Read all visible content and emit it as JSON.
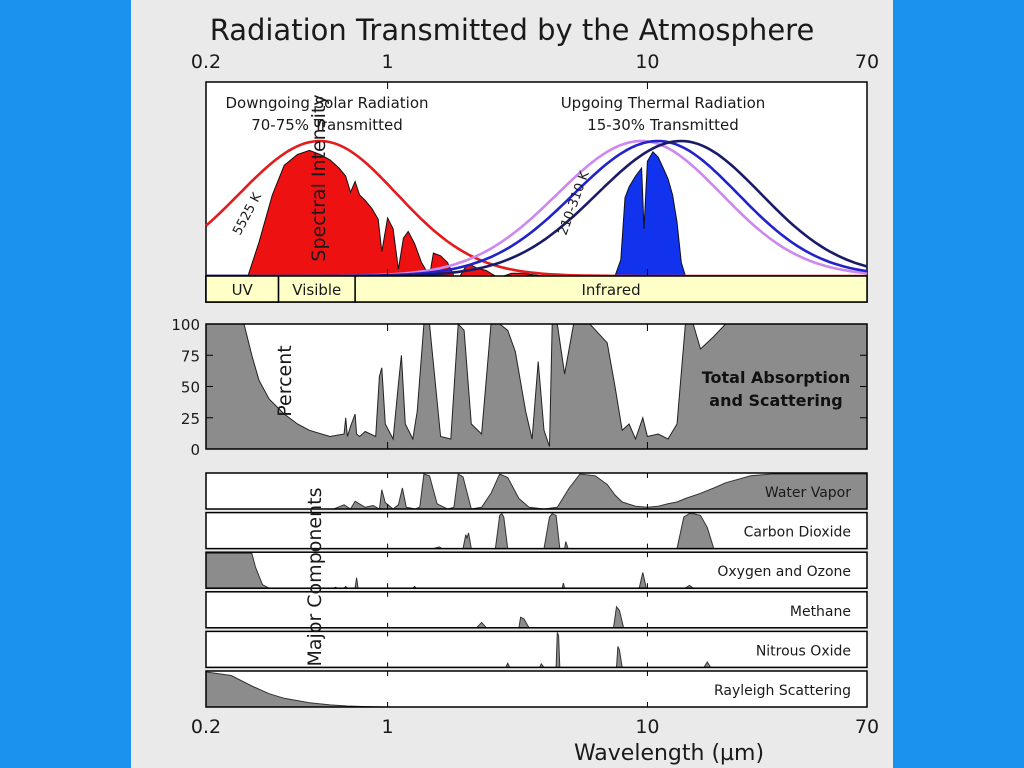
{
  "slide": {
    "background": "#eaeaea",
    "frame_color": "#1b93ee"
  },
  "chart_data": [
    {
      "id": "spectral",
      "type": "area",
      "title": "Radiation Transmitted by the Atmosphere",
      "ylabel": "Spectral Intensity",
      "xscale": "log",
      "xlim": [
        0.2,
        70
      ],
      "x_ticks": [
        0.2,
        1,
        10,
        70
      ],
      "x_tick_labels": [
        "0.2",
        "1",
        "10",
        "70"
      ],
      "annotations": {
        "solar_title": "Downgoing Solar Radiation",
        "solar_sub": "70-75% Transmitted",
        "thermal_title": "Upgoing Thermal Radiation",
        "thermal_sub": "15-30% Transmitted",
        "solar_temp": "5525 K",
        "thermal_temp": "210-310 K"
      },
      "bands": [
        {
          "label": "UV",
          "range": [
            0.2,
            0.38
          ]
        },
        {
          "label": "Visible",
          "range": [
            0.38,
            0.75
          ]
        },
        {
          "label": "Infrared",
          "range": [
            0.75,
            70
          ]
        }
      ],
      "series": [
        {
          "role": "curve",
          "color": "#e41a1c",
          "peak_x": 0.55,
          "width": 0.5
        },
        {
          "role": "curve",
          "color": "#cc88ee",
          "peak_x": 9.5,
          "width": 0.52
        },
        {
          "role": "curve",
          "color": "#2222cc",
          "peak_x": 11,
          "width": 0.52
        },
        {
          "role": "curve",
          "color": "#1a1a66",
          "peak_x": 13.5,
          "width": 0.52
        },
        {
          "role": "fill",
          "color": "#ee1111",
          "x": [
            0.29,
            0.32,
            0.36,
            0.4,
            0.45,
            0.5,
            0.55,
            0.6,
            0.65,
            0.69,
            0.72,
            0.75,
            0.78,
            0.82,
            0.87,
            0.92,
            0.95,
            1.0,
            1.05,
            1.1,
            1.15,
            1.2,
            1.27,
            1.35,
            1.45,
            1.5,
            1.6,
            1.7,
            1.8,
            1.9,
            2.0,
            2.1,
            2.2,
            2.4,
            2.6,
            2.8,
            3.0,
            3.3,
            3.6,
            4.0
          ],
          "y": [
            0.0,
            0.25,
            0.6,
            0.82,
            0.9,
            0.93,
            0.9,
            0.86,
            0.8,
            0.74,
            0.62,
            0.7,
            0.6,
            0.56,
            0.5,
            0.42,
            0.18,
            0.43,
            0.35,
            0.05,
            0.28,
            0.33,
            0.24,
            0.1,
            0.0,
            0.17,
            0.15,
            0.1,
            0.0,
            0.0,
            0.07,
            0.08,
            0.06,
            0.04,
            0.0,
            0.0,
            0.02,
            0.02,
            0.01,
            0.0
          ]
        },
        {
          "role": "fill",
          "color": "#1133ee",
          "x": [
            7.5,
            7.9,
            8.2,
            8.5,
            9.0,
            9.5,
            9.7,
            10.0,
            10.5,
            11.0,
            11.5,
            12.0,
            12.5,
            13.0,
            13.5,
            14.0
          ],
          "y": [
            0.0,
            0.12,
            0.58,
            0.66,
            0.74,
            0.8,
            0.35,
            0.85,
            0.92,
            0.88,
            0.8,
            0.72,
            0.6,
            0.4,
            0.1,
            0.0
          ]
        }
      ]
    },
    {
      "id": "total",
      "type": "area",
      "ylabel": "Percent",
      "label": "Total Absorption\nand Scattering",
      "xscale": "log",
      "xlim": [
        0.2,
        70
      ],
      "ylim": [
        0,
        100
      ],
      "y_ticks": [
        0,
        25,
        50,
        75,
        100
      ],
      "fill": "#8c8c8c",
      "x": [
        0.2,
        0.28,
        0.3,
        0.32,
        0.35,
        0.4,
        0.45,
        0.5,
        0.6,
        0.68,
        0.69,
        0.7,
        0.72,
        0.75,
        0.76,
        0.78,
        0.82,
        0.9,
        0.93,
        0.95,
        0.98,
        1.05,
        1.1,
        1.13,
        1.17,
        1.25,
        1.3,
        1.38,
        1.45,
        1.6,
        1.75,
        1.87,
        1.97,
        2.1,
        2.3,
        2.5,
        2.7,
        2.9,
        3.1,
        3.4,
        3.6,
        3.8,
        4.0,
        4.2,
        4.3,
        4.5,
        4.8,
        5.2,
        6.0,
        7.0,
        7.5,
        8.0,
        8.5,
        9.0,
        9.6,
        10.0,
        11.0,
        12.0,
        13.0,
        14.0,
        15.0,
        16.0,
        18.0,
        20.0,
        22.0,
        25.0,
        30.0,
        40.0,
        50.0,
        70.0
      ],
      "values": [
        100,
        100,
        75,
        55,
        40,
        28,
        20,
        15,
        10,
        12,
        25,
        10,
        18,
        28,
        12,
        10,
        14,
        10,
        58,
        65,
        20,
        8,
        52,
        75,
        20,
        8,
        30,
        100,
        100,
        10,
        8,
        100,
        95,
        20,
        12,
        100,
        100,
        95,
        78,
        30,
        8,
        70,
        15,
        2,
        100,
        100,
        60,
        100,
        100,
        85,
        50,
        15,
        20,
        8,
        25,
        10,
        12,
        8,
        20,
        100,
        100,
        80,
        90,
        100,
        100,
        100,
        100,
        100,
        100,
        100
      ]
    },
    {
      "id": "components",
      "type": "area",
      "ylabel": "Major Components",
      "xlabel": "Wavelength (µm)",
      "xscale": "log",
      "xlim": [
        0.2,
        70
      ],
      "x_ticks": [
        0.2,
        1,
        10,
        70
      ],
      "x_tick_labels": [
        "0.2",
        "1",
        "10",
        "70"
      ],
      "fill": "#8c8c8c",
      "series": [
        {
          "name": "Water Vapor",
          "x": [
            0.2,
            0.62,
            0.68,
            0.72,
            0.75,
            0.82,
            0.88,
            0.93,
            0.95,
            0.98,
            1.05,
            1.1,
            1.14,
            1.18,
            1.28,
            1.33,
            1.38,
            1.45,
            1.55,
            1.7,
            1.8,
            1.87,
            1.95,
            2.1,
            2.3,
            2.5,
            2.7,
            2.9,
            3.2,
            3.5,
            4.0,
            4.5,
            5.0,
            5.5,
            6.3,
            7.0,
            7.5,
            8.0,
            9.0,
            10.0,
            11.0,
            12.0,
            13.0,
            14.0,
            16.0,
            18.0,
            20.0,
            25.0,
            30.0,
            40.0,
            70.0
          ],
          "values": [
            0,
            0,
            12,
            0,
            22,
            5,
            10,
            0,
            55,
            18,
            0,
            12,
            60,
            5,
            0,
            6,
            100,
            95,
            15,
            0,
            5,
            100,
            92,
            0,
            5,
            45,
            100,
            90,
            30,
            5,
            0,
            5,
            60,
            100,
            95,
            70,
            40,
            20,
            8,
            5,
            8,
            15,
            20,
            30,
            45,
            60,
            75,
            95,
            100,
            100,
            100
          ]
        },
        {
          "name": "Carbon Dioxide",
          "x": [
            0.2,
            1.5,
            1.58,
            1.62,
            1.95,
            2.0,
            2.02,
            2.05,
            2.1,
            2.6,
            2.7,
            2.75,
            2.8,
            2.9,
            4.0,
            4.2,
            4.3,
            4.45,
            4.6,
            4.8,
            4.85,
            4.95,
            13.0,
            13.8,
            14.5,
            15.0,
            16.0,
            17.0,
            18.0,
            70.0
          ],
          "values": [
            0,
            0,
            5,
            0,
            0,
            40,
            30,
            45,
            0,
            0,
            95,
            100,
            90,
            0,
            0,
            90,
            100,
            95,
            0,
            0,
            20,
            0,
            0,
            90,
            100,
            100,
            95,
            60,
            0,
            0
          ]
        },
        {
          "name": "Oxygen and Ozone",
          "x": [
            0.2,
            0.3,
            0.31,
            0.33,
            0.35,
            0.62,
            0.63,
            0.64,
            0.68,
            0.69,
            0.7,
            0.75,
            0.76,
            0.77,
            1.25,
            1.27,
            1.29,
            4.7,
            4.75,
            4.8,
            9.3,
            9.6,
            9.9,
            14.0,
            14.5,
            15.0,
            70.0
          ],
          "values": [
            100,
            100,
            60,
            10,
            0,
            0,
            3,
            0,
            0,
            5,
            0,
            0,
            30,
            0,
            0,
            5,
            0,
            0,
            15,
            0,
            0,
            45,
            0,
            0,
            8,
            0,
            0
          ]
        },
        {
          "name": "Methane",
          "x": [
            0.2,
            2.2,
            2.3,
            2.4,
            3.2,
            3.25,
            3.35,
            3.5,
            7.4,
            7.6,
            7.8,
            8.1,
            70.0
          ],
          "values": [
            0,
            0,
            15,
            0,
            0,
            30,
            25,
            0,
            0,
            60,
            50,
            0,
            0
          ]
        },
        {
          "name": "Nitrous Oxide",
          "x": [
            0.2,
            2.85,
            2.9,
            2.95,
            3.85,
            3.9,
            4.0,
            4.45,
            4.5,
            4.55,
            4.6,
            7.6,
            7.7,
            7.8,
            8.0,
            16.5,
            17.0,
            17.5,
            70.0
          ],
          "values": [
            0,
            0,
            12,
            0,
            0,
            10,
            0,
            0,
            100,
            90,
            0,
            0,
            60,
            50,
            0,
            0,
            15,
            0,
            0
          ]
        },
        {
          "name": "Rayleigh Scattering",
          "x": [
            0.2,
            0.25,
            0.3,
            0.35,
            0.4,
            0.5,
            0.6,
            0.7,
            0.8,
            1.0,
            70.0
          ],
          "values": [
            100,
            90,
            60,
            38,
            25,
            12,
            6,
            3,
            1.5,
            0,
            0
          ]
        }
      ]
    }
  ]
}
